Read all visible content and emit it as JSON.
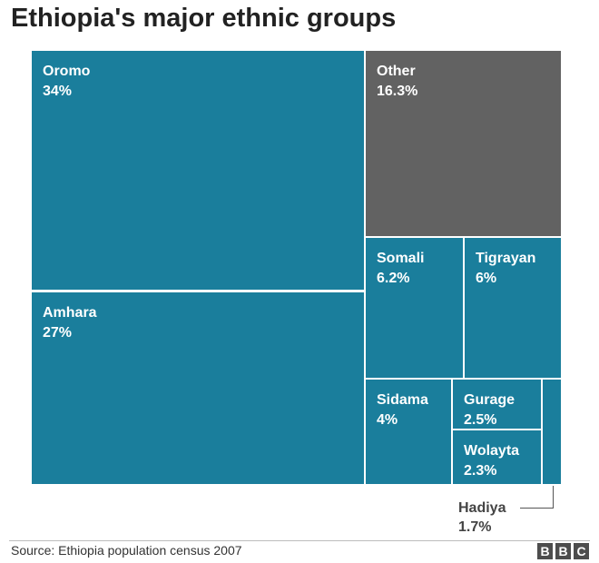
{
  "title": "Ethiopia's major ethnic groups",
  "source": "Source: Ethiopia population census 2007",
  "logo": [
    "B",
    "B",
    "C"
  ],
  "colors": {
    "blue": "#1a7e9c",
    "grey": "#626262",
    "border": "#ffffff"
  },
  "chart_data": {
    "type": "treemap",
    "title": "Ethiopia's major ethnic groups",
    "items": [
      {
        "name": "Oromo",
        "label": "34%",
        "value": 34,
        "color": "#1a7e9c",
        "show_label": true
      },
      {
        "name": "Amhara",
        "label": "27%",
        "value": 27,
        "color": "#1a7e9c",
        "show_label": true
      },
      {
        "name": "Other",
        "label": "16.3%",
        "value": 16.3,
        "color": "#626262",
        "show_label": true
      },
      {
        "name": "Somali",
        "label": "6.2%",
        "value": 6.2,
        "color": "#1a7e9c",
        "show_label": true
      },
      {
        "name": "Tigrayan",
        "label": "6%",
        "value": 6,
        "color": "#1a7e9c",
        "show_label": true
      },
      {
        "name": "Sidama",
        "label": "4%",
        "value": 4,
        "color": "#1a7e9c",
        "show_label": true
      },
      {
        "name": "Gurage",
        "label": "2.5%",
        "value": 2.5,
        "color": "#1a7e9c",
        "show_label": true
      },
      {
        "name": "Wolayta",
        "label": "2.3%",
        "value": 2.3,
        "color": "#1a7e9c",
        "show_label": true
      },
      {
        "name": "Hadiya",
        "label": "1.7%",
        "value": 1.7,
        "color": "#1a7e9c",
        "show_label": false
      }
    ],
    "callout": {
      "name": "Hadiya",
      "label": "1.7%"
    }
  }
}
